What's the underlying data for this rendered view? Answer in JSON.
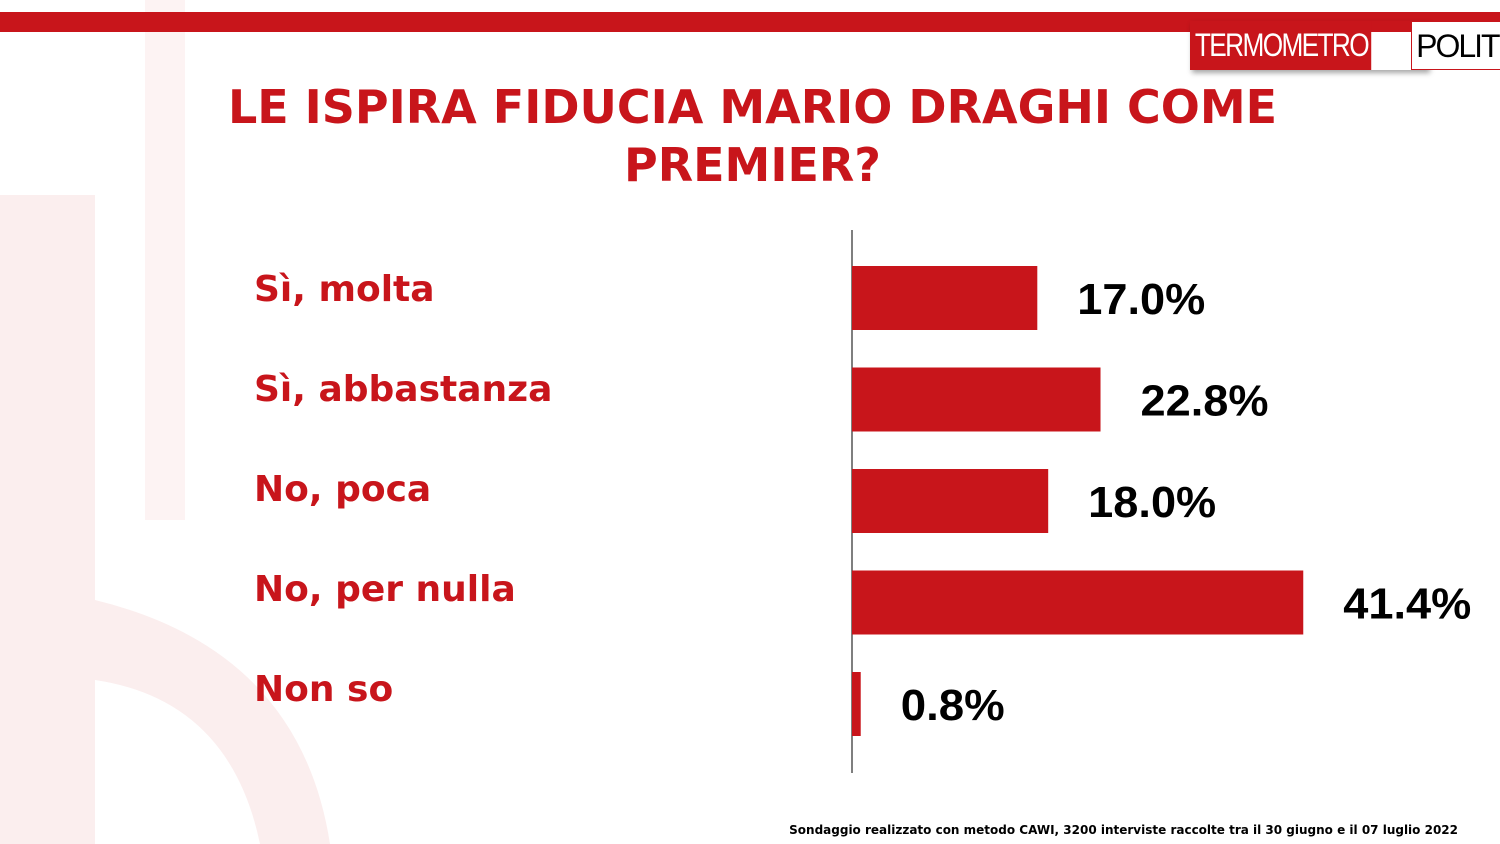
{
  "logo": {
    "part1": "TERMOMETRO",
    "part2": "POLITICO"
  },
  "title_lines": [
    "LE ISPIRA FIDUCIA MARIO DRAGHI COME",
    "PREMIER?"
  ],
  "colors": {
    "accent": "#c8151b",
    "value_text": "#000000"
  },
  "chart_data": {
    "type": "bar",
    "orientation": "horizontal",
    "title": "LE ISPIRA FIDUCIA MARIO DRAGHI COME PREMIER?",
    "categories": [
      "Sì, molta",
      "Sì, abbastanza",
      "No, poca",
      "No, per nulla",
      "Non so"
    ],
    "values": [
      17.0,
      22.8,
      18.0,
      41.4,
      0.8
    ],
    "value_labels": [
      "17.0%",
      "22.8%",
      "18.0%",
      "41.4%",
      "0.8%"
    ],
    "unit": "%",
    "grid": false,
    "legend": "none"
  },
  "footnote": "Sondaggio realizzato con metodo CAWI, 3200 interviste raccolte tra il 30 giugno  e il 07 luglio 2022"
}
